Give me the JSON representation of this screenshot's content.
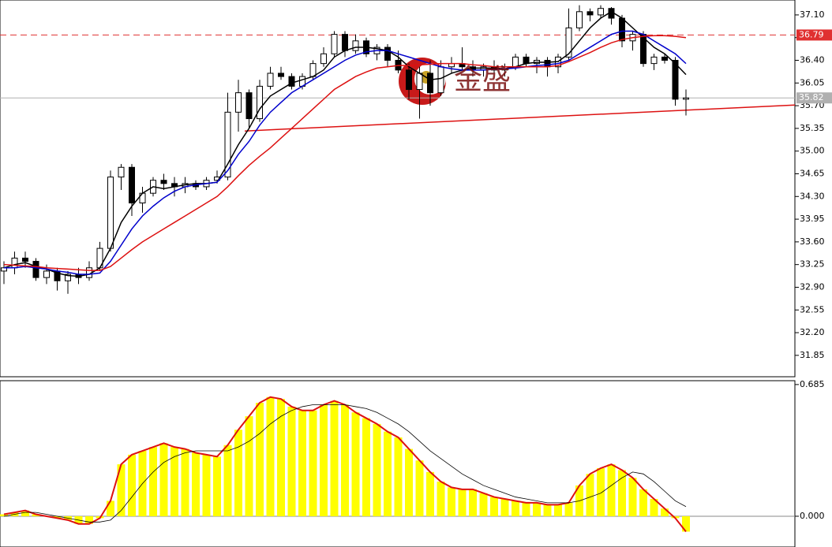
{
  "chart_data": [
    {
      "type": "candlestick",
      "watermark": "金盛",
      "open": [
        33.15,
        33.2,
        33.35,
        33.3,
        33.05,
        33.15,
        33.0,
        33.1,
        33.05,
        33.2,
        33.5,
        34.6,
        34.75,
        34.2,
        34.35,
        34.55,
        34.5,
        34.45,
        34.5,
        34.45,
        34.55,
        34.6,
        35.6,
        35.9,
        35.5,
        36.0,
        36.2,
        36.15,
        36.0,
        36.15,
        36.35,
        36.5,
        36.8,
        36.55,
        36.7,
        36.5,
        36.6,
        36.4,
        36.25,
        35.95,
        36.2,
        35.9,
        36.3,
        36.35,
        36.3,
        36.25,
        36.3,
        36.25,
        36.3,
        36.45,
        36.35,
        36.4,
        36.3,
        36.45,
        36.9,
        37.15,
        37.1,
        37.2,
        37.05,
        36.7,
        36.8,
        36.35,
        36.45,
        36.4,
        35.8
      ],
      "high": [
        33.3,
        33.45,
        33.45,
        33.35,
        33.25,
        33.2,
        33.15,
        33.2,
        33.3,
        33.6,
        34.7,
        34.8,
        34.8,
        34.45,
        34.6,
        34.65,
        34.6,
        34.6,
        34.55,
        34.6,
        34.7,
        35.9,
        36.1,
        35.95,
        36.1,
        36.3,
        36.3,
        36.2,
        36.2,
        36.4,
        36.6,
        36.85,
        36.85,
        36.8,
        36.75,
        36.65,
        36.65,
        36.55,
        36.35,
        36.3,
        36.4,
        36.4,
        36.45,
        36.6,
        36.4,
        36.35,
        36.4,
        36.35,
        36.5,
        36.5,
        36.45,
        36.45,
        36.5,
        37.2,
        37.25,
        37.2,
        37.25,
        37.22,
        37.1,
        36.85,
        36.85,
        36.5,
        36.5,
        36.45,
        35.95
      ],
      "low": [
        32.95,
        33.1,
        33.2,
        33.0,
        32.95,
        32.85,
        32.8,
        32.95,
        33.0,
        33.15,
        33.45,
        34.4,
        34.0,
        34.05,
        34.3,
        34.4,
        34.3,
        34.35,
        34.4,
        34.4,
        34.5,
        34.55,
        35.3,
        35.35,
        35.45,
        35.95,
        36.1,
        35.95,
        35.95,
        36.1,
        36.3,
        36.45,
        36.45,
        36.5,
        36.45,
        36.4,
        36.3,
        36.2,
        35.8,
        35.5,
        35.7,
        35.85,
        36.2,
        36.25,
        36.15,
        36.15,
        36.2,
        36.15,
        36.25,
        36.3,
        36.2,
        36.15,
        36.2,
        36.4,
        36.85,
        37.0,
        37.05,
        36.95,
        36.6,
        36.55,
        36.3,
        36.25,
        36.35,
        35.7,
        35.55
      ],
      "close": [
        33.2,
        33.35,
        33.3,
        33.05,
        33.15,
        33.0,
        33.1,
        33.05,
        33.2,
        33.5,
        34.6,
        34.75,
        34.2,
        34.35,
        34.55,
        34.5,
        34.45,
        34.5,
        34.45,
        34.55,
        34.6,
        35.6,
        35.9,
        35.5,
        36.0,
        36.2,
        36.15,
        36.0,
        36.15,
        36.35,
        36.5,
        36.8,
        36.55,
        36.7,
        36.5,
        36.6,
        36.4,
        36.25,
        35.95,
        36.2,
        35.9,
        36.3,
        36.35,
        36.3,
        36.25,
        36.3,
        36.25,
        36.3,
        36.45,
        36.35,
        36.4,
        36.3,
        36.45,
        36.9,
        37.15,
        37.1,
        37.2,
        37.05,
        36.7,
        36.8,
        36.35,
        36.45,
        36.4,
        35.8,
        35.82
      ],
      "lines": [
        {
          "color": "#000000",
          "values": [
            33.2,
            33.25,
            33.28,
            33.22,
            33.18,
            33.12,
            33.08,
            33.07,
            33.1,
            33.2,
            33.5,
            33.9,
            34.15,
            34.35,
            34.45,
            34.42,
            34.45,
            34.48,
            34.5,
            34.5,
            34.52,
            34.8,
            35.1,
            35.35,
            35.65,
            35.85,
            35.95,
            36.05,
            36.1,
            36.15,
            36.25,
            36.45,
            36.55,
            36.6,
            36.6,
            36.58,
            36.55,
            36.45,
            36.3,
            36.2,
            36.1,
            36.12,
            36.2,
            36.25,
            36.28,
            36.28,
            36.28,
            36.27,
            36.3,
            36.35,
            36.37,
            36.37,
            36.38,
            36.5,
            36.7,
            36.9,
            37.05,
            37.15,
            37.05,
            36.9,
            36.75,
            36.6,
            36.5,
            36.35,
            36.18
          ]
        },
        {
          "color": "#0000cc",
          "values": [
            33.2,
            33.2,
            33.22,
            33.2,
            33.18,
            33.15,
            33.13,
            33.1,
            33.1,
            33.12,
            33.3,
            33.55,
            33.8,
            34.0,
            34.15,
            34.28,
            34.38,
            34.45,
            34.48,
            34.5,
            34.52,
            34.7,
            34.95,
            35.15,
            35.4,
            35.6,
            35.75,
            35.9,
            36.0,
            36.1,
            36.2,
            36.3,
            36.4,
            36.48,
            36.53,
            36.55,
            36.55,
            36.5,
            36.45,
            36.4,
            36.35,
            36.3,
            36.27,
            36.25,
            36.25,
            36.25,
            36.26,
            36.27,
            36.28,
            36.3,
            36.32,
            36.33,
            36.35,
            36.4,
            36.5,
            36.6,
            36.7,
            36.8,
            36.85,
            36.85,
            36.8,
            36.7,
            36.6,
            36.5,
            36.35
          ]
        },
        {
          "color": "#dd1111",
          "values": [
            33.25,
            33.24,
            33.23,
            33.22,
            33.2,
            33.19,
            33.18,
            33.17,
            33.16,
            33.16,
            33.22,
            33.35,
            33.48,
            33.6,
            33.7,
            33.8,
            33.9,
            34.0,
            34.1,
            34.2,
            34.3,
            34.45,
            34.62,
            34.78,
            34.92,
            35.05,
            35.2,
            35.35,
            35.5,
            35.65,
            35.8,
            35.95,
            36.05,
            36.15,
            36.22,
            36.28,
            36.3,
            36.32,
            36.32,
            36.33,
            36.34,
            36.35,
            36.35,
            36.35,
            36.33,
            36.32,
            36.3,
            36.3,
            36.3,
            36.3,
            36.3,
            36.3,
            36.32,
            36.38,
            36.45,
            36.52,
            36.6,
            36.67,
            36.72,
            36.75,
            36.77,
            36.78,
            36.78,
            36.77,
            36.75
          ]
        }
      ],
      "trendline": {
        "color": "#dd1111",
        "values": [
          35.31,
          35.71
        ]
      },
      "levels": [
        {
          "value": 36.79,
          "label": "36.79",
          "color": "#e03030",
          "dashed": true
        },
        {
          "value": 35.82,
          "label": "35.82",
          "color": "#b0b0b0",
          "dashed": false
        }
      ],
      "ylim": [
        31.52,
        37.33
      ],
      "yticks": [
        {
          "value": 37.1,
          "label": "37.10"
        },
        36.75,
        {
          "value": 36.4,
          "label": "36.40"
        },
        36.05,
        {
          "value": 35.7,
          "label": "35.70"
        },
        35.35,
        {
          "value": 35,
          "label": "35.00"
        },
        34.65,
        {
          "value": 34.3,
          "label": "34.30"
        },
        33.95,
        {
          "value": 33.6,
          "label": "33.60"
        },
        33.25,
        {
          "value": 32.9,
          "label": "32.90"
        },
        32.55,
        {
          "value": 32.2,
          "label": "32.20"
        },
        31.85
      ]
    },
    {
      "type": "macd",
      "values": [
        0.01,
        0.02,
        0.03,
        0.01,
        0.0,
        -0.01,
        -0.02,
        -0.04,
        -0.04,
        -0.01,
        0.08,
        0.27,
        0.32,
        0.34,
        0.36,
        0.38,
        0.36,
        0.35,
        0.33,
        0.32,
        0.31,
        0.37,
        0.45,
        0.52,
        0.59,
        0.62,
        0.61,
        0.57,
        0.55,
        0.55,
        0.58,
        0.6,
        0.58,
        0.54,
        0.51,
        0.48,
        0.44,
        0.41,
        0.35,
        0.29,
        0.23,
        0.18,
        0.15,
        0.14,
        0.14,
        0.12,
        0.1,
        0.09,
        0.08,
        0.07,
        0.07,
        0.06,
        0.06,
        0.07,
        0.16,
        0.22,
        0.25,
        0.27,
        0.24,
        0.2,
        0.14,
        0.09,
        0.04,
        -0.01,
        -0.08
      ],
      "color": "#ffff00",
      "outline": "#dd1111",
      "signal": {
        "color": "#000000",
        "values": [
          0.0,
          0.01,
          0.02,
          0.02,
          0.01,
          0.0,
          -0.01,
          -0.02,
          -0.03,
          -0.03,
          -0.02,
          0.03,
          0.1,
          0.17,
          0.23,
          0.28,
          0.31,
          0.33,
          0.34,
          0.34,
          0.34,
          0.34,
          0.36,
          0.39,
          0.43,
          0.48,
          0.52,
          0.55,
          0.57,
          0.58,
          0.58,
          0.58,
          0.58,
          0.57,
          0.56,
          0.54,
          0.51,
          0.48,
          0.44,
          0.39,
          0.34,
          0.3,
          0.26,
          0.22,
          0.19,
          0.16,
          0.14,
          0.12,
          0.1,
          0.09,
          0.08,
          0.07,
          0.07,
          0.07,
          0.08,
          0.1,
          0.12,
          0.16,
          0.2,
          0.23,
          0.22,
          0.18,
          0.13,
          0.08,
          0.05
        ]
      },
      "ylim": [
        -0.16,
        0.705
      ],
      "yticks": [
        {
          "value": 0.685,
          "label": "0.685"
        },
        {
          "value": 0,
          "label": "0.000"
        }
      ]
    }
  ]
}
